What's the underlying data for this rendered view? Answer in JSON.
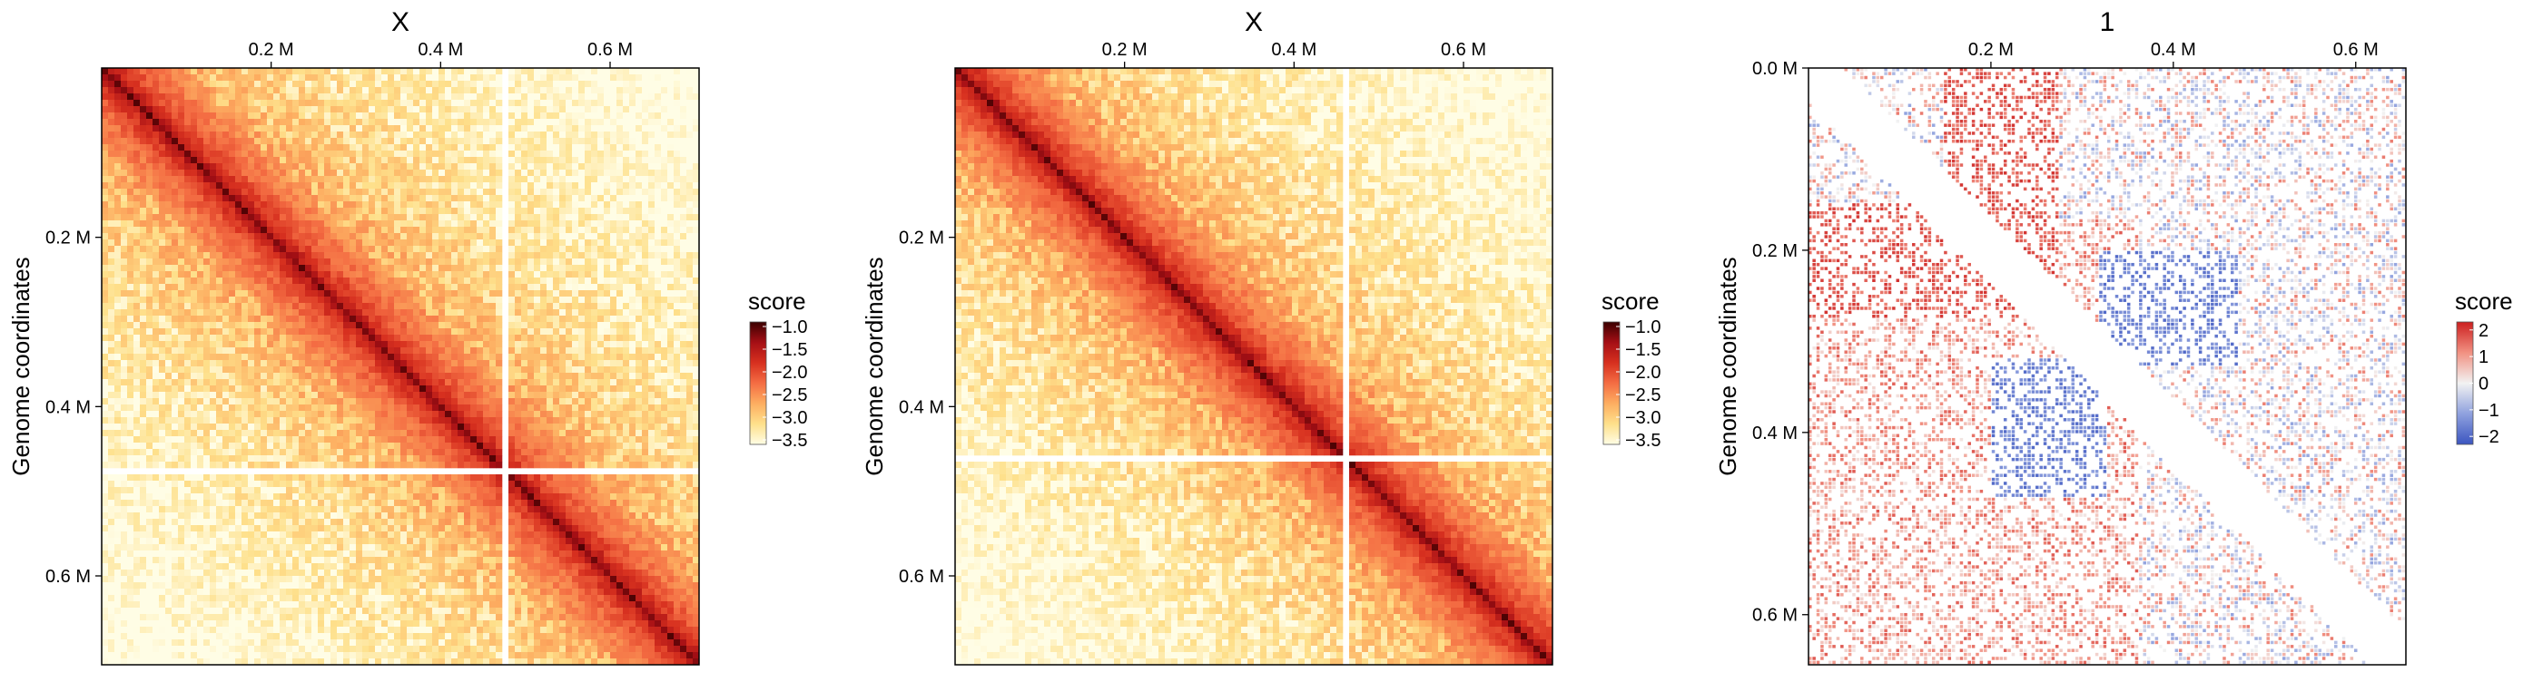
{
  "chart_data": [
    {
      "type": "heatmap",
      "title": "X",
      "ylabel": "Genome coordinates",
      "x_ticks": [
        "0.2 M",
        "0.4 M",
        "0.6 M"
      ],
      "y_ticks": [
        "0.2 M",
        "0.4 M",
        "0.6 M"
      ],
      "x_tick_values": [
        200000,
        400000,
        600000
      ],
      "y_tick_values": [
        200000,
        400000,
        600000
      ],
      "xlim": [
        0,
        705000
      ],
      "ylim": [
        0,
        705000
      ],
      "legend": {
        "title": "score",
        "ticks": [
          "−1.0",
          "−1.5",
          "−2.0",
          "−2.5",
          "−3.0",
          "−3.5"
        ],
        "tick_values": [
          -1.0,
          -1.5,
          -2.0,
          -2.5,
          -3.0,
          -3.5
        ],
        "range": [
          -3.6,
          -0.9
        ],
        "colors": [
          "#fffde5",
          "#fee08b",
          "#fdae61",
          "#f46d43",
          "#d7301f",
          "#a50f15",
          "#3a0000"
        ]
      },
      "diagonal": true,
      "gaps": [
        475000
      ],
      "colormap": "YlOrRd"
    },
    {
      "type": "heatmap",
      "title": "X",
      "ylabel": "Genome coordinates",
      "x_ticks": [
        "0.2 M",
        "0.4 M",
        "0.6 M"
      ],
      "y_ticks": [
        "0.2 M",
        "0.4 M",
        "0.6 M"
      ],
      "x_tick_values": [
        200000,
        400000,
        600000
      ],
      "y_tick_values": [
        200000,
        400000,
        600000
      ],
      "xlim": [
        0,
        705000
      ],
      "ylim": [
        0,
        705000
      ],
      "legend": {
        "title": "score",
        "ticks": [
          "−1.0",
          "−1.5",
          "−2.0",
          "−2.5",
          "−3.0",
          "−3.5"
        ],
        "tick_values": [
          -1.0,
          -1.5,
          -2.0,
          -2.5,
          -3.0,
          -3.5
        ],
        "range": [
          -3.6,
          -0.9
        ],
        "colors": [
          "#fffde5",
          "#fee08b",
          "#fdae61",
          "#f46d43",
          "#d7301f",
          "#a50f15",
          "#3a0000"
        ]
      },
      "diagonal": true,
      "gaps": [
        460000
      ],
      "colormap": "YlOrRd"
    },
    {
      "type": "heatmap",
      "title": "1",
      "ylabel": "Genome coordinates",
      "x_ticks": [
        "0.2 M",
        "0.4 M",
        "0.6 M"
      ],
      "y_ticks": [
        "0.0 M",
        "0.2 M",
        "0.4 M",
        "0.6 M"
      ],
      "x_tick_values": [
        200000,
        400000,
        600000
      ],
      "y_tick_values": [
        0,
        200000,
        400000,
        600000
      ],
      "xlim": [
        0,
        655000
      ],
      "ylim": [
        0,
        655000
      ],
      "legend": {
        "title": "score",
        "ticks": [
          "2",
          "1",
          "0",
          "−1",
          "−2"
        ],
        "tick_values": [
          2,
          1,
          0,
          -1,
          -2
        ],
        "range": [
          -2.3,
          2.3
        ],
        "colors": [
          "#3b55c0",
          "#8fa1de",
          "#f2f2f2",
          "#f19182",
          "#cc1f1f"
        ]
      },
      "diagonal": false,
      "colormap": "RdBu"
    }
  ]
}
